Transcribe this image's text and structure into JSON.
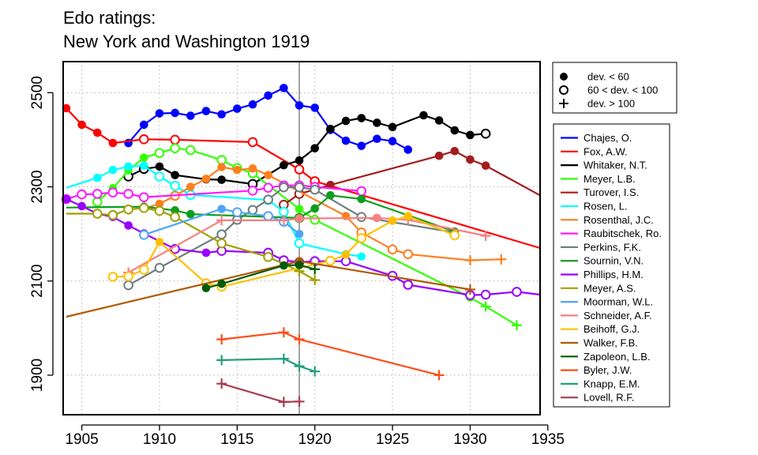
{
  "chart_data": {
    "type": "line",
    "title": [
      "Edo ratings:",
      "New York and Washington 1919"
    ],
    "xlabel": "",
    "ylabel": "",
    "xlim": [
      1903.8,
      1934.5
    ],
    "ylim": [
      1816,
      2566
    ],
    "xticks": [
      1905,
      1910,
      1915,
      1920,
      1925,
      1930,
      1935
    ],
    "yticks": [
      1900,
      2100,
      2300,
      2500
    ],
    "grid": true,
    "reference_line_x": 1919,
    "marker_legend": {
      "placement": "top-right",
      "entries": [
        {
          "label": "dev. < 60",
          "marker": "filled"
        },
        {
          "label": "60 < dev. < 100",
          "marker": "open"
        },
        {
          "label": "dev. > 100",
          "marker": "plus"
        }
      ]
    },
    "series_legend_placement": "right",
    "series": [
      {
        "name": "Chajes, O.",
        "color": "#0000ff",
        "points": [
          [
            1908,
            2393,
            "f"
          ],
          [
            1909,
            2432,
            "f"
          ],
          [
            1910,
            2456,
            "f"
          ],
          [
            1911,
            2457,
            "f"
          ],
          [
            1912,
            2451,
            "f"
          ],
          [
            1913,
            2461,
            "f"
          ],
          [
            1914,
            2454,
            "f"
          ],
          [
            1915,
            2466,
            "f"
          ],
          [
            1916,
            2475,
            "f"
          ],
          [
            1917,
            2494,
            "f"
          ],
          [
            1918,
            2510,
            "f"
          ],
          [
            1919,
            2473,
            "f"
          ],
          [
            1920,
            2468,
            "f"
          ],
          [
            1921,
            2421,
            "f"
          ],
          [
            1922,
            2398,
            "f"
          ],
          [
            1923,
            2387,
            "f"
          ],
          [
            1924,
            2402,
            "f"
          ],
          [
            1925,
            2397,
            "f"
          ],
          [
            1926,
            2379,
            "f"
          ]
        ]
      },
      {
        "name": "Fox, A.W.",
        "color": "#ff0000",
        "points": [
          [
            1904,
            2467,
            "f"
          ],
          [
            1905,
            2432,
            "f"
          ],
          [
            1906,
            2415,
            "f"
          ],
          [
            1907,
            2393,
            "f"
          ],
          [
            1909,
            2401,
            "o"
          ],
          [
            1911,
            2400,
            "o"
          ],
          [
            1916,
            2395,
            "o"
          ],
          [
            1919,
            2337,
            "o"
          ],
          [
            1920,
            2312,
            "o"
          ],
          [
            1934.5,
            2170,
            "n"
          ]
        ]
      },
      {
        "name": "Whitaker, N.T.",
        "color": "#000000",
        "points": [
          [
            1908,
            2322,
            "o"
          ],
          [
            1909,
            2338,
            "o"
          ],
          [
            1910,
            2343,
            "f"
          ],
          [
            1911,
            2325,
            "f"
          ],
          [
            1913,
            2316,
            "f"
          ],
          [
            1914,
            2315,
            "f"
          ],
          [
            1916,
            2306,
            "o"
          ],
          [
            1918,
            2346,
            "f"
          ],
          [
            1919,
            2356,
            "f"
          ],
          [
            1920,
            2382,
            "f"
          ],
          [
            1921,
            2423,
            "f"
          ],
          [
            1922,
            2440,
            "f"
          ],
          [
            1923,
            2446,
            "f"
          ],
          [
            1924,
            2436,
            "f"
          ],
          [
            1925,
            2427,
            "f"
          ],
          [
            1927,
            2452,
            "f"
          ],
          [
            1928,
            2441,
            "f"
          ],
          [
            1929,
            2420,
            "f"
          ],
          [
            1930,
            2410,
            "f"
          ],
          [
            1931,
            2413,
            "o"
          ]
        ]
      },
      {
        "name": "Meyer, L.B.",
        "color": "#33ff00",
        "points": [
          [
            1906,
            2268,
            "o"
          ],
          [
            1907,
            2297,
            "f"
          ],
          [
            1908,
            2335,
            "f"
          ],
          [
            1909,
            2362,
            "f"
          ],
          [
            1910,
            2372,
            "o"
          ],
          [
            1911,
            2382,
            "o"
          ],
          [
            1912,
            2378,
            "o"
          ],
          [
            1914,
            2357,
            "o"
          ],
          [
            1915,
            2340,
            "o"
          ],
          [
            1916,
            2329,
            "o"
          ],
          [
            1919,
            2253,
            "f"
          ],
          [
            1920,
            2230,
            "o"
          ],
          [
            1930,
            2065,
            "f"
          ],
          [
            1931,
            2046,
            "p"
          ],
          [
            1933,
            2006,
            "p"
          ]
        ]
      },
      {
        "name": "Turover, I.S.",
        "color": "#a51c1c",
        "points": [
          [
            1918,
            2262,
            "o"
          ],
          [
            1919,
            2285,
            "o"
          ],
          [
            1921,
            2304,
            "f"
          ],
          [
            1928,
            2366,
            "f"
          ],
          [
            1929,
            2376,
            "f"
          ],
          [
            1930,
            2358,
            "f"
          ],
          [
            1931,
            2345,
            "f"
          ],
          [
            1934.5,
            2282,
            "n"
          ]
        ]
      },
      {
        "name": "Rosen, L.",
        "color": "#00ffff",
        "points": [
          [
            1904,
            2298,
            "n"
          ],
          [
            1906,
            2319,
            "f"
          ],
          [
            1907,
            2336,
            "f"
          ],
          [
            1908,
            2343,
            "f"
          ],
          [
            1909,
            2345,
            "f"
          ],
          [
            1910,
            2322,
            "o"
          ],
          [
            1911,
            2302,
            "o"
          ],
          [
            1912,
            2283,
            "o"
          ],
          [
            1917,
            2272,
            "o"
          ],
          [
            1918,
            2247,
            "o"
          ],
          [
            1919,
            2180,
            "o"
          ],
          [
            1922,
            2157,
            "f"
          ],
          [
            1923,
            2152,
            "f"
          ]
        ]
      },
      {
        "name": "Rosenthal, J.C.",
        "color": "#ff7f1f",
        "points": [
          [
            1909,
            2254,
            "f"
          ],
          [
            1910,
            2264,
            "f"
          ],
          [
            1911,
            2281,
            "o"
          ],
          [
            1912,
            2300,
            "f"
          ],
          [
            1913,
            2317,
            "f"
          ],
          [
            1914,
            2342,
            "f"
          ],
          [
            1915,
            2336,
            "f"
          ],
          [
            1916,
            2339,
            "f"
          ],
          [
            1917,
            2325,
            "f"
          ],
          [
            1922,
            2238,
            "f"
          ],
          [
            1923,
            2203,
            "o"
          ],
          [
            1925,
            2167,
            "o"
          ],
          [
            1926,
            2157,
            "o"
          ],
          [
            1930,
            2144,
            "p"
          ],
          [
            1932,
            2146,
            "p"
          ]
        ]
      },
      {
        "name": "Raubitschek, Ro.",
        "color": "#ff19ff",
        "points": [
          [
            1904,
            2274,
            "o"
          ],
          [
            1905,
            2284,
            "o"
          ],
          [
            1906,
            2285,
            "o"
          ],
          [
            1907,
            2288,
            "o"
          ],
          [
            1908,
            2285,
            "o"
          ],
          [
            1909,
            2278,
            "o"
          ],
          [
            1916,
            2292,
            "o"
          ],
          [
            1917,
            2298,
            "o"
          ],
          [
            1918,
            2303,
            "o"
          ],
          [
            1919,
            2303,
            "o"
          ],
          [
            1920,
            2300,
            "o"
          ],
          [
            1923,
            2291,
            "o"
          ]
        ]
      },
      {
        "name": "Perkins, F.K.",
        "color": "#6e7f80",
        "points": [
          [
            1908,
            2091,
            "o"
          ],
          [
            1910,
            2128,
            "o"
          ],
          [
            1914,
            2199,
            "o"
          ],
          [
            1915,
            2230,
            "o"
          ],
          [
            1916,
            2251,
            "o"
          ],
          [
            1917,
            2273,
            "o"
          ],
          [
            1918,
            2299,
            "o"
          ],
          [
            1919,
            2299,
            "o"
          ],
          [
            1920,
            2294,
            "o"
          ],
          [
            1923,
            2236,
            "o"
          ],
          [
            1929,
            2203,
            "f"
          ]
        ]
      },
      {
        "name": "Sournin, V.N.",
        "color": "#0c9e1c",
        "points": [
          [
            1904,
            2256,
            "n"
          ],
          [
            1909,
            2258,
            "f"
          ],
          [
            1911,
            2250,
            "f"
          ],
          [
            1912,
            2242,
            "f"
          ],
          [
            1919,
            2234,
            "o"
          ],
          [
            1920,
            2254,
            "f"
          ],
          [
            1921,
            2282,
            "f"
          ],
          [
            1923,
            2274,
            "f"
          ],
          [
            1929,
            2205,
            "f"
          ]
        ]
      },
      {
        "name": "Phillips, H.M.",
        "color": "#9900ff",
        "points": [
          [
            1904,
            2274,
            "f"
          ],
          [
            1905,
            2259,
            "f"
          ],
          [
            1906,
            2243,
            "f"
          ],
          [
            1907,
            2236,
            "f"
          ],
          [
            1908,
            2218,
            "f"
          ],
          [
            1909,
            2201,
            "f"
          ],
          [
            1911,
            2168,
            "o"
          ],
          [
            1913,
            2160,
            "f"
          ],
          [
            1914,
            2164,
            "o"
          ],
          [
            1917,
            2160,
            "o"
          ],
          [
            1918,
            2144,
            "o"
          ],
          [
            1919,
            2140,
            "o"
          ],
          [
            1920,
            2142,
            "o"
          ],
          [
            1922,
            2142,
            "o"
          ],
          [
            1925,
            2111,
            "o"
          ],
          [
            1926,
            2092,
            "o"
          ],
          [
            1930,
            2070,
            "o"
          ],
          [
            1931,
            2071,
            "o"
          ],
          [
            1933,
            2077,
            "o"
          ],
          [
            1934.5,
            2071,
            "n"
          ]
        ]
      },
      {
        "name": "Meyer, A.S.",
        "color": "#a0a000",
        "points": [
          [
            1904,
            2243,
            "n"
          ],
          [
            1906,
            2243,
            "o"
          ],
          [
            1907,
            2240,
            "o"
          ],
          [
            1908,
            2252,
            "o"
          ],
          [
            1909,
            2255,
            "o"
          ],
          [
            1910,
            2249,
            "o"
          ],
          [
            1911,
            2236,
            "o"
          ],
          [
            1914,
            2180,
            "o"
          ],
          [
            1917,
            2151,
            "o"
          ],
          [
            1919,
            2121,
            "p"
          ],
          [
            1920,
            2102,
            "p"
          ]
        ]
      },
      {
        "name": "Moorman, W.L.",
        "color": "#4ea5f6",
        "points": [
          [
            1909,
            2198,
            "o"
          ],
          [
            1914,
            2253,
            "f"
          ],
          [
            1915,
            2246,
            "o"
          ],
          [
            1917,
            2238,
            "o"
          ],
          [
            1918,
            2226,
            "o"
          ],
          [
            1919,
            2200,
            "f"
          ]
        ]
      },
      {
        "name": "Schneider, A.F.",
        "color": "#f97f80",
        "points": [
          [
            1908,
            2118,
            "p"
          ],
          [
            1914,
            2229,
            "p"
          ],
          [
            1918,
            2229,
            "p"
          ],
          [
            1919,
            2233,
            "f"
          ],
          [
            1924,
            2234,
            "f"
          ],
          [
            1926,
            2230,
            "p"
          ],
          [
            1931,
            2196,
            "p"
          ]
        ]
      },
      {
        "name": "Beihoff, G.J.",
        "color": "#ffc000",
        "points": [
          [
            1907,
            2109,
            "o"
          ],
          [
            1908,
            2110,
            "o"
          ],
          [
            1909,
            2124,
            "o"
          ],
          [
            1910,
            2183,
            "f"
          ],
          [
            1913,
            2095,
            "o"
          ],
          [
            1914,
            2088,
            "o"
          ],
          [
            1921,
            2143,
            "o"
          ],
          [
            1922,
            2156,
            "f"
          ],
          [
            1923,
            2191,
            "o"
          ],
          [
            1925,
            2228,
            "f"
          ],
          [
            1926,
            2238,
            "f"
          ],
          [
            1929,
            2197,
            "o"
          ]
        ]
      },
      {
        "name": "Walker, F.B.",
        "color": "#b25800",
        "points": [
          [
            1904,
            2024,
            "n"
          ],
          [
            1919,
            2142,
            "f"
          ],
          [
            1930,
            2082,
            "p"
          ]
        ]
      },
      {
        "name": "Zapoleon, L.B.",
        "color": "#005c00",
        "points": [
          [
            1913,
            2085,
            "f"
          ],
          [
            1914,
            2094,
            "f"
          ],
          [
            1918,
            2133,
            "f"
          ],
          [
            1919,
            2134,
            "f"
          ],
          [
            1920,
            2125,
            "p"
          ]
        ]
      },
      {
        "name": "Byler, J.W.",
        "color": "#ff4d1a",
        "points": [
          [
            1914,
            1976,
            "p"
          ],
          [
            1918,
            1991,
            "p"
          ],
          [
            1919,
            1976,
            "p"
          ],
          [
            1928,
            1900,
            "p"
          ]
        ]
      },
      {
        "name": "Knapp, E.M.",
        "color": "#269e7d",
        "points": [
          [
            1914,
            1932,
            "p"
          ],
          [
            1918,
            1935,
            "p"
          ],
          [
            1919,
            1919,
            "p"
          ],
          [
            1920,
            1908,
            "p"
          ]
        ]
      },
      {
        "name": "Lovell, R.F.",
        "color": "#a63d50",
        "points": [
          [
            1914,
            1882,
            "p"
          ],
          [
            1918,
            1843,
            "p"
          ],
          [
            1919,
            1844,
            "p"
          ]
        ]
      }
    ]
  }
}
